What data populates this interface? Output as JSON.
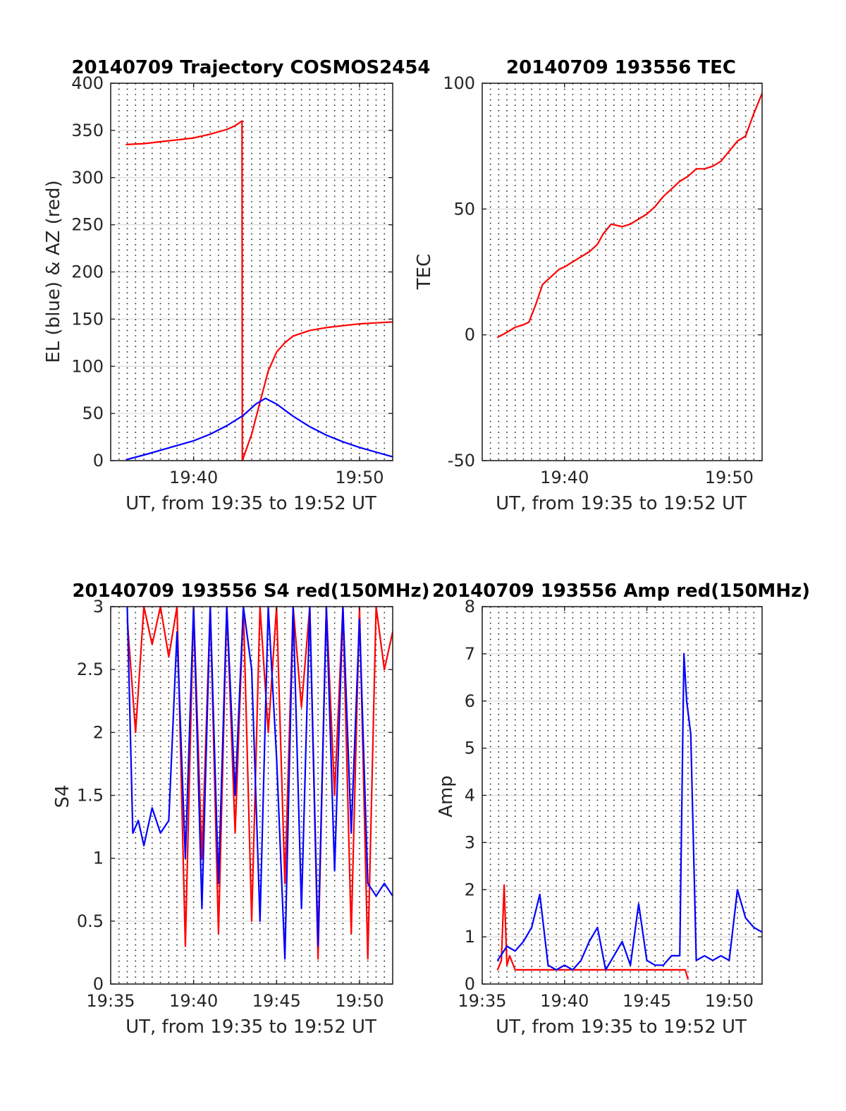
{
  "colors": {
    "el_blue": "#0000ff",
    "az_red": "#ff0000",
    "axis": "#262626",
    "grid_major": "#dcdcdc",
    "grid_minor": "#222222"
  },
  "chart_data": [
    {
      "id": "trajectory",
      "type": "line",
      "title": "20140709 Trajectory COSMOS2454",
      "xlabel": "UT, from 19:35 to 19:52 UT",
      "ylabel": "EL (blue) & AZ (red)",
      "xlim": [
        "19:35",
        "19:52"
      ],
      "ylim": [
        0,
        400
      ],
      "xtick_values": [
        "19:40",
        "19:50"
      ],
      "ytick_values": [
        0,
        50,
        100,
        150,
        200,
        250,
        300,
        350,
        400
      ],
      "grid": "major horizontal, dotted vertical every 30 s",
      "series": [
        {
          "color": "az_red",
          "x": [
            "19:35:56",
            "19:37:00",
            "19:38:00",
            "19:39:00",
            "19:40:00",
            "19:41:00",
            "19:42:00",
            "19:42:30",
            "19:42:55",
            "19:42:56",
            "19:43:30",
            "19:44:00",
            "19:44:30",
            "19:45:00",
            "19:45:30",
            "19:46:00",
            "19:47:00",
            "19:48:00",
            "19:49:00",
            "19:50:00",
            "19:51:00",
            "19:52:00"
          ],
          "values": [
            335,
            336,
            338,
            340,
            342,
            346,
            351,
            355,
            360,
            0,
            28,
            62,
            95,
            115,
            125,
            132,
            138,
            141,
            143,
            145,
            146,
            147
          ]
        },
        {
          "color": "el_blue",
          "x": [
            "19:35:56",
            "19:37:00",
            "19:38:00",
            "19:39:00",
            "19:40:00",
            "19:41:00",
            "19:42:00",
            "19:43:00",
            "19:43:45",
            "19:44:20",
            "19:45:00",
            "19:46:00",
            "19:47:00",
            "19:48:00",
            "19:49:00",
            "19:50:00",
            "19:51:00",
            "19:52:00"
          ],
          "values": [
            1,
            6,
            11,
            16,
            21,
            28,
            37,
            48,
            60,
            66,
            60,
            47,
            36,
            27,
            20,
            14,
            9,
            4
          ]
        }
      ]
    },
    {
      "id": "tec",
      "type": "line",
      "title": "20140709 193556 TEC",
      "xlabel": "UT, from 19:35 to 19:52 UT",
      "ylabel": "TEC",
      "xlim": [
        "19:35",
        "19:52"
      ],
      "ylim": [
        -50,
        100
      ],
      "xtick_values": [
        "19:40",
        "19:50"
      ],
      "ytick_values": [
        -50,
        0,
        50,
        100
      ],
      "grid": "major horizontal, dotted vertical every 30 s",
      "series": [
        {
          "color": "az_red",
          "x": [
            "19:35:56",
            "19:36:30",
            "19:37:00",
            "19:37:30",
            "19:37:50",
            "19:38:15",
            "19:38:40",
            "19:39:10",
            "19:39:40",
            "19:40:00",
            "19:40:30",
            "19:41:00",
            "19:41:30",
            "19:42:00",
            "19:42:20",
            "19:42:50",
            "19:43:30",
            "19:44:00",
            "19:44:30",
            "19:45:00",
            "19:45:30",
            "19:46:00",
            "19:46:30",
            "19:47:00",
            "19:47:30",
            "19:48:00",
            "19:48:30",
            "19:49:00",
            "19:49:30",
            "19:50:00",
            "19:50:30",
            "19:51:00",
            "19:51:30",
            "19:52:00"
          ],
          "values": [
            -1,
            1,
            3,
            4,
            5,
            12,
            20,
            23,
            26,
            27,
            29,
            31,
            33,
            36,
            40,
            44,
            43,
            44,
            46,
            48,
            51,
            55,
            58,
            61,
            63,
            66,
            66,
            67,
            69,
            73,
            77,
            79,
            88,
            96
          ]
        }
      ]
    },
    {
      "id": "s4",
      "type": "line",
      "title": "20140709 193556 S4 red(150MHz)",
      "xlabel": "UT, from 19:35 to 19:52 UT",
      "ylabel": "S4",
      "xlim": [
        "19:35",
        "19:52"
      ],
      "ylim": [
        0,
        3
      ],
      "xtick_values": [
        "19:35",
        "19:40",
        "19:45",
        "19:50"
      ],
      "ytick_values": [
        0,
        0.5,
        1,
        1.5,
        2,
        2.5,
        3
      ],
      "grid": "major horizontal, dotted vertical every 30 s",
      "series": [
        {
          "color": "az_red",
          "x": [
            "19:36:00",
            "19:36:30",
            "19:37:00",
            "19:37:30",
            "19:38:00",
            "19:38:30",
            "19:39:00",
            "19:39:30",
            "19:40:00",
            "19:40:30",
            "19:41:00",
            "19:41:30",
            "19:42:00",
            "19:42:30",
            "19:43:00",
            "19:43:30",
            "19:44:00",
            "19:44:30",
            "19:45:00",
            "19:45:30",
            "19:46:00",
            "19:46:30",
            "19:47:00",
            "19:47:30",
            "19:48:00",
            "19:48:30",
            "19:49:00",
            "19:49:30",
            "19:50:00",
            "19:50:30",
            "19:51:00",
            "19:51:30",
            "19:52:00"
          ],
          "values": [
            2.9,
            2.0,
            3.0,
            2.7,
            3.0,
            2.6,
            3.0,
            0.3,
            3.0,
            1.0,
            3.0,
            0.4,
            3.0,
            1.2,
            3.0,
            0.5,
            3.0,
            2.0,
            3.0,
            0.8,
            3.0,
            2.2,
            3.0,
            0.2,
            3.0,
            1.5,
            3.0,
            0.4,
            3.0,
            0.2,
            3.0,
            2.5,
            2.8
          ]
        },
        {
          "color": "el_blue",
          "x": [
            "19:36:00",
            "19:36:20",
            "19:36:40",
            "19:37:00",
            "19:37:30",
            "19:38:00",
            "19:38:30",
            "19:39:00",
            "19:39:30",
            "19:40:00",
            "19:40:30",
            "19:41:00",
            "19:41:30",
            "19:42:00",
            "19:42:30",
            "19:43:00",
            "19:43:30",
            "19:44:00",
            "19:44:30",
            "19:45:00",
            "19:45:30",
            "19:46:00",
            "19:46:30",
            "19:47:00",
            "19:47:30",
            "19:48:00",
            "19:48:30",
            "19:49:00",
            "19:49:30",
            "19:50:00",
            "19:50:30",
            "19:51:00",
            "19:51:30",
            "19:52:00"
          ],
          "values": [
            3.0,
            1.2,
            1.3,
            1.1,
            1.4,
            1.2,
            1.3,
            2.8,
            1.0,
            3.0,
            0.6,
            3.0,
            0.8,
            3.0,
            1.5,
            3.0,
            2.5,
            0.5,
            3.0,
            1.8,
            0.2,
            3.0,
            0.6,
            3.0,
            0.3,
            3.0,
            0.9,
            3.0,
            1.2,
            2.9,
            0.8,
            0.7,
            0.8,
            0.7
          ]
        }
      ]
    },
    {
      "id": "amp",
      "type": "line",
      "title": "20140709 193556 Amp red(150MHz)",
      "xlabel": "UT, from 19:35 to 19:52 UT",
      "ylabel": "Amp",
      "xlim": [
        "19:35",
        "19:52"
      ],
      "ylim": [
        0,
        8
      ],
      "xtick_values": [
        "19:35",
        "19:40",
        "19:45",
        "19:50"
      ],
      "ytick_values": [
        0,
        1,
        2,
        3,
        4,
        5,
        6,
        7,
        8
      ],
      "grid": "major horizontal, dotted vertical every 30 s",
      "series": [
        {
          "color": "az_red",
          "x": [
            "19:35:56",
            "19:36:10",
            "19:36:20",
            "19:36:30",
            "19:36:40",
            "19:37:00",
            "19:47:20",
            "19:47:30"
          ],
          "values": [
            0.3,
            0.5,
            2.1,
            0.4,
            0.6,
            0.3,
            0.3,
            0.1
          ]
        },
        {
          "color": "el_blue",
          "x": [
            "19:35:56",
            "19:36:30",
            "19:37:00",
            "19:37:30",
            "19:38:00",
            "19:38:30",
            "19:39:00",
            "19:39:30",
            "19:40:00",
            "19:40:30",
            "19:41:00",
            "19:41:30",
            "19:42:00",
            "19:42:30",
            "19:43:00",
            "19:43:30",
            "19:44:00",
            "19:44:30",
            "19:45:00",
            "19:45:30",
            "19:46:00",
            "19:46:30",
            "19:47:00",
            "19:47:15",
            "19:47:25",
            "19:47:40",
            "19:48:00",
            "19:48:30",
            "19:49:00",
            "19:49:30",
            "19:50:00",
            "19:50:30",
            "19:51:00",
            "19:51:30",
            "19:52:00"
          ],
          "values": [
            0.5,
            0.8,
            0.7,
            0.9,
            1.2,
            1.9,
            0.4,
            0.3,
            0.4,
            0.3,
            0.5,
            0.9,
            1.2,
            0.3,
            0.6,
            0.9,
            0.4,
            1.7,
            0.5,
            0.4,
            0.4,
            0.6,
            0.6,
            7.0,
            6.0,
            5.3,
            0.5,
            0.6,
            0.5,
            0.6,
            0.5,
            2.0,
            1.4,
            1.2,
            1.1
          ]
        }
      ]
    }
  ]
}
